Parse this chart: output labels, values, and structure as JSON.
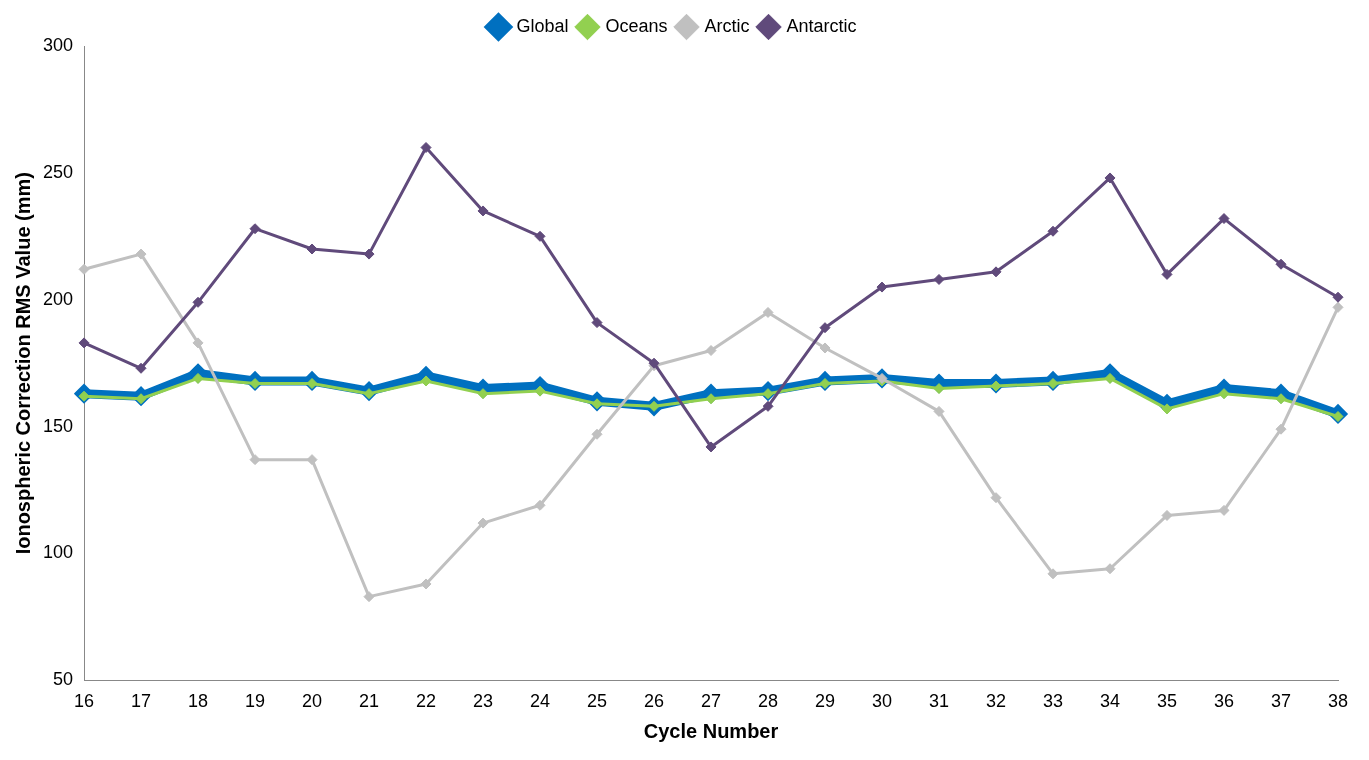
{
  "chart_data": {
    "type": "line",
    "xlabel": "Cycle Number",
    "ylabel": "Ionospheric Correction RMS Value (mm)",
    "categories": [
      "16",
      "17",
      "18",
      "19",
      "20",
      "21",
      "22",
      "23",
      "24",
      "25",
      "26",
      "27",
      "28",
      "29",
      "30",
      "31",
      "32",
      "33",
      "34",
      "35",
      "36",
      "37",
      "38"
    ],
    "ylim": [
      50,
      300
    ],
    "yticks": [
      50,
      100,
      150,
      200,
      250,
      300
    ],
    "grid": false,
    "legend": "top",
    "marker": "diamond",
    "line_style": "solid",
    "series": [
      {
        "name": "Global",
        "color": "#0070c0",
        "values": [
          163,
          162,
          171,
          168,
          168,
          164,
          170,
          165,
          166,
          160,
          158,
          163,
          164,
          168,
          169,
          167,
          167,
          168,
          171,
          159,
          165,
          163,
          155
        ]
      },
      {
        "name": "Oceans",
        "color": "#92d050",
        "values": [
          162,
          161,
          169,
          167,
          167,
          163,
          168,
          163,
          164,
          159,
          158,
          161,
          163,
          167,
          168,
          165,
          166,
          167,
          169,
          157,
          163,
          161,
          154
        ]
      },
      {
        "name": "Arctic",
        "color": "#c0c0c0",
        "values": [
          212,
          218,
          183,
          137,
          137,
          83,
          88,
          112,
          119,
          147,
          174,
          180,
          195,
          181,
          169,
          156,
          122,
          92,
          94,
          115,
          117,
          149,
          197
        ]
      },
      {
        "name": "Antarctic",
        "color": "#604a7b",
        "values": [
          183,
          173,
          199,
          228,
          220,
          218,
          260,
          235,
          225,
          191,
          175,
          142,
          158,
          189,
          205,
          208,
          211,
          227,
          248,
          210,
          232,
          214,
          201
        ]
      }
    ]
  }
}
